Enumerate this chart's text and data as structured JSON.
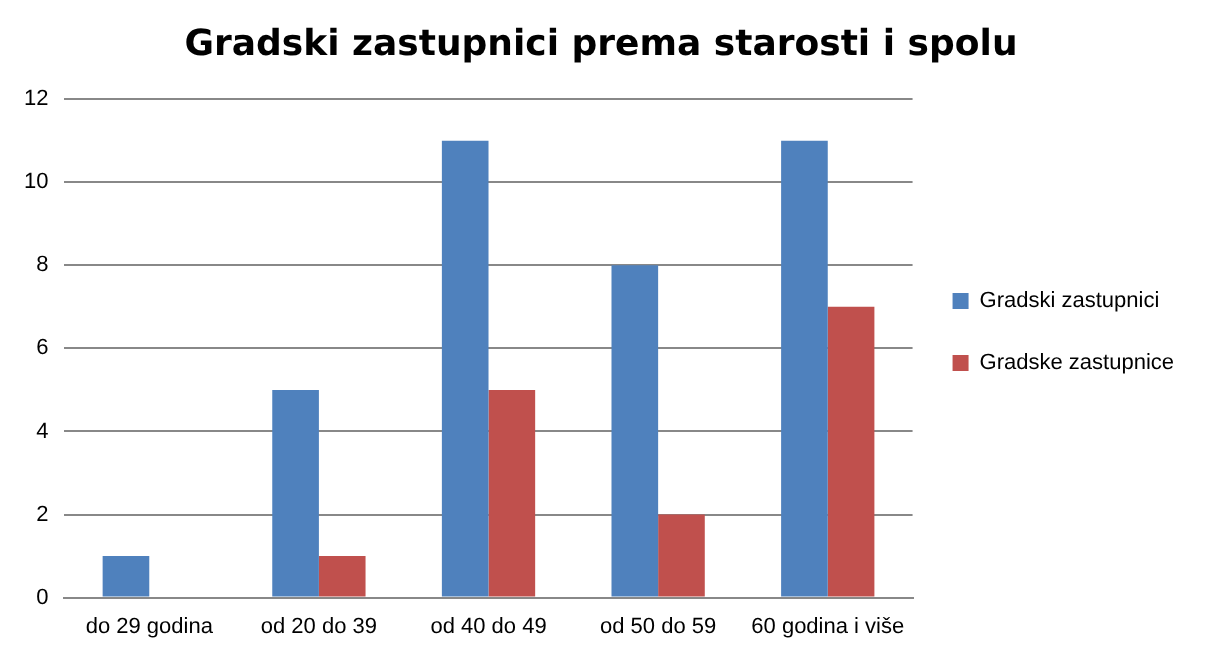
{
  "chart_data": {
    "type": "bar",
    "title": "Gradski zastupnici prema starosti i spolu",
    "categories": [
      "do 29 godina",
      "od 20 do 39",
      "od 40 do 49",
      "od 50 do 59",
      "60 godina i više"
    ],
    "series": [
      {
        "name": "Gradski zastupnici",
        "color": "#4f81bd",
        "values": [
          1,
          5,
          11,
          8,
          11
        ]
      },
      {
        "name": "Gradske zastupnice",
        "color": "#c0504d",
        "values": [
          0,
          1,
          5,
          2,
          7
        ]
      }
    ],
    "ylim": [
      0,
      12
    ],
    "yticks": [
      0,
      2,
      4,
      6,
      8,
      10,
      12
    ],
    "grid": "y",
    "legend": "right"
  }
}
